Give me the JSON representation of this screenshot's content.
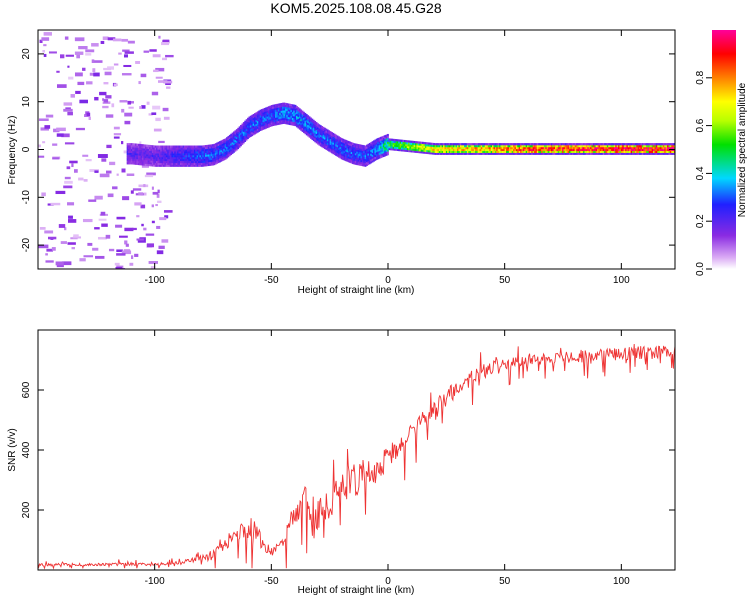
{
  "figure": {
    "title": "KOM5.2025.108.08.45.G28"
  },
  "chart_data": [
    {
      "type": "heatmap",
      "title": "KOM5.2025.108.08.45.G28",
      "xlabel": "Height of straight line (km)",
      "ylabel": "Frequency (Hz)",
      "xlim": [
        -150,
        123
      ],
      "ylim": [
        -25,
        25
      ],
      "x_ticks": [
        -100,
        -50,
        0,
        50,
        100
      ],
      "y_ticks": [
        -20,
        -10,
        0,
        10,
        20
      ],
      "colorbar": {
        "label": "Normalized spectral amplitude",
        "range": [
          0,
          1
        ],
        "ticks": [
          0.0,
          0.2,
          0.4,
          0.6,
          0.8
        ],
        "colormap": "rainbow (white-violet-blue-cyan-green-yellow-red-magenta)"
      },
      "ridge": {
        "x": [
          -110,
          -100,
          -90,
          -80,
          -75,
          -70,
          -65,
          -60,
          -55,
          -50,
          -45,
          -40,
          -35,
          -30,
          -25,
          -20,
          -15,
          -10,
          -5,
          0,
          10,
          20,
          40,
          60,
          80,
          100,
          123
        ],
        "freq": [
          -1.0,
          -1.5,
          -1.5,
          -1.5,
          -1.2,
          0.0,
          2.0,
          4.5,
          6.0,
          7.0,
          7.5,
          7.0,
          5.0,
          3.0,
          1.5,
          0.0,
          -1.0,
          -1.5,
          0.0,
          1.0,
          0.5,
          0.0,
          0.0,
          0.0,
          0.0,
          0.0,
          0.0
        ],
        "amplitude": [
          0.2,
          0.2,
          0.25,
          0.3,
          0.3,
          0.3,
          0.3,
          0.3,
          0.3,
          0.3,
          0.35,
          0.35,
          0.35,
          0.3,
          0.3,
          0.3,
          0.3,
          0.3,
          0.35,
          0.5,
          0.6,
          0.7,
          0.75,
          0.85,
          0.85,
          0.9,
          0.9
        ]
      },
      "grid": false
    },
    {
      "type": "line",
      "xlabel": "Height of straight line (km)",
      "ylabel": "SNR (v/v)",
      "xlim": [
        -150,
        123
      ],
      "ylim": [
        0,
        800
      ],
      "x_ticks": [
        -100,
        -50,
        0,
        50,
        100
      ],
      "y_ticks": [
        200,
        400,
        600
      ],
      "color": "#ee3333",
      "series": [
        {
          "x": [
            -150,
            -130,
            -110,
            -100,
            -90,
            -80,
            -75,
            -70,
            -65,
            -60,
            -58,
            -55,
            -50,
            -45,
            -40,
            -35,
            -30,
            -25,
            -20,
            -15,
            -10,
            -5,
            0,
            5,
            10,
            20,
            30,
            40,
            50,
            60,
            80,
            100,
            123
          ],
          "values": [
            18,
            18,
            20,
            18,
            25,
            40,
            55,
            80,
            120,
            150,
            160,
            100,
            60,
            80,
            190,
            220,
            180,
            230,
            270,
            300,
            320,
            330,
            380,
            420,
            460,
            540,
            610,
            660,
            690,
            700,
            710,
            720,
            730
          ],
          "spread": [
            10,
            8,
            10,
            8,
            12,
            20,
            25,
            35,
            50,
            70,
            150,
            60,
            30,
            90,
            120,
            110,
            120,
            110,
            110,
            130,
            100,
            90,
            80,
            70,
            70,
            60,
            50,
            50,
            40,
            35,
            40,
            45,
            45
          ]
        }
      ],
      "grid": false
    }
  ]
}
